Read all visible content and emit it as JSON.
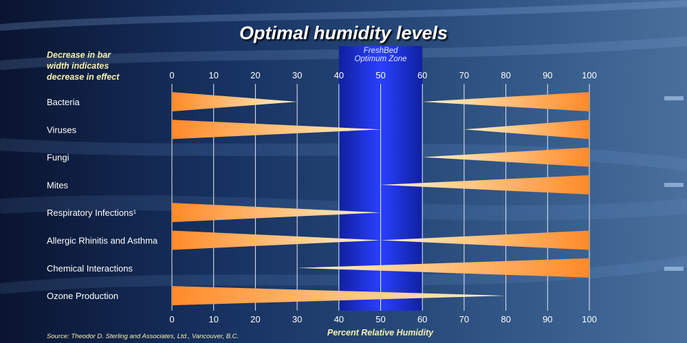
{
  "chart_data": {
    "type": "bar",
    "title": "Optimal humidity levels",
    "note_lines": [
      "Decrease in bar",
      "width indicates",
      "decrease in effect"
    ],
    "zone_label_lines": [
      "FreshBed",
      "Optimum Zone"
    ],
    "zone": [
      40,
      60
    ],
    "xlabel": "Percent Relative Humidity",
    "source": "Source: Theodor D. Sterling and Associates, Ltd., Vancouver, B.C.",
    "ticks": [
      0,
      10,
      20,
      30,
      40,
      50,
      60,
      70,
      80,
      90,
      100
    ],
    "xlim": [
      0,
      100
    ],
    "grid": true,
    "categories": [
      "Bacteria",
      "Viruses",
      "Fungi",
      "Mites",
      "Respiratory Infections¹",
      "Allergic Rhinitis and Asthma",
      "Chemical Interactions",
      "Ozone Production"
    ],
    "series": [
      {
        "values": [
          {
            "low_effect_until": 30,
            "high_effect_from": 60
          },
          {
            "low_effect_until": 50,
            "high_effect_from": 70
          },
          {
            "low_effect_until": null,
            "high_effect_from": 60
          },
          {
            "low_effect_until": null,
            "high_effect_from": 50
          },
          {
            "low_effect_until": 50,
            "high_effect_from": null
          },
          {
            "low_effect_until": 50,
            "high_effect_from": 50
          },
          {
            "low_effect_until": null,
            "high_effect_from": 30
          },
          {
            "low_effect_until": 80,
            "high_effect_from": null
          }
        ]
      }
    ],
    "colors": {
      "bar_strong": "#ff8a2a",
      "bar_weak": "#fff6cc",
      "zone": "#1c2fe0",
      "text": "#ffffff",
      "accent_text": "#f7f2b0"
    }
  }
}
